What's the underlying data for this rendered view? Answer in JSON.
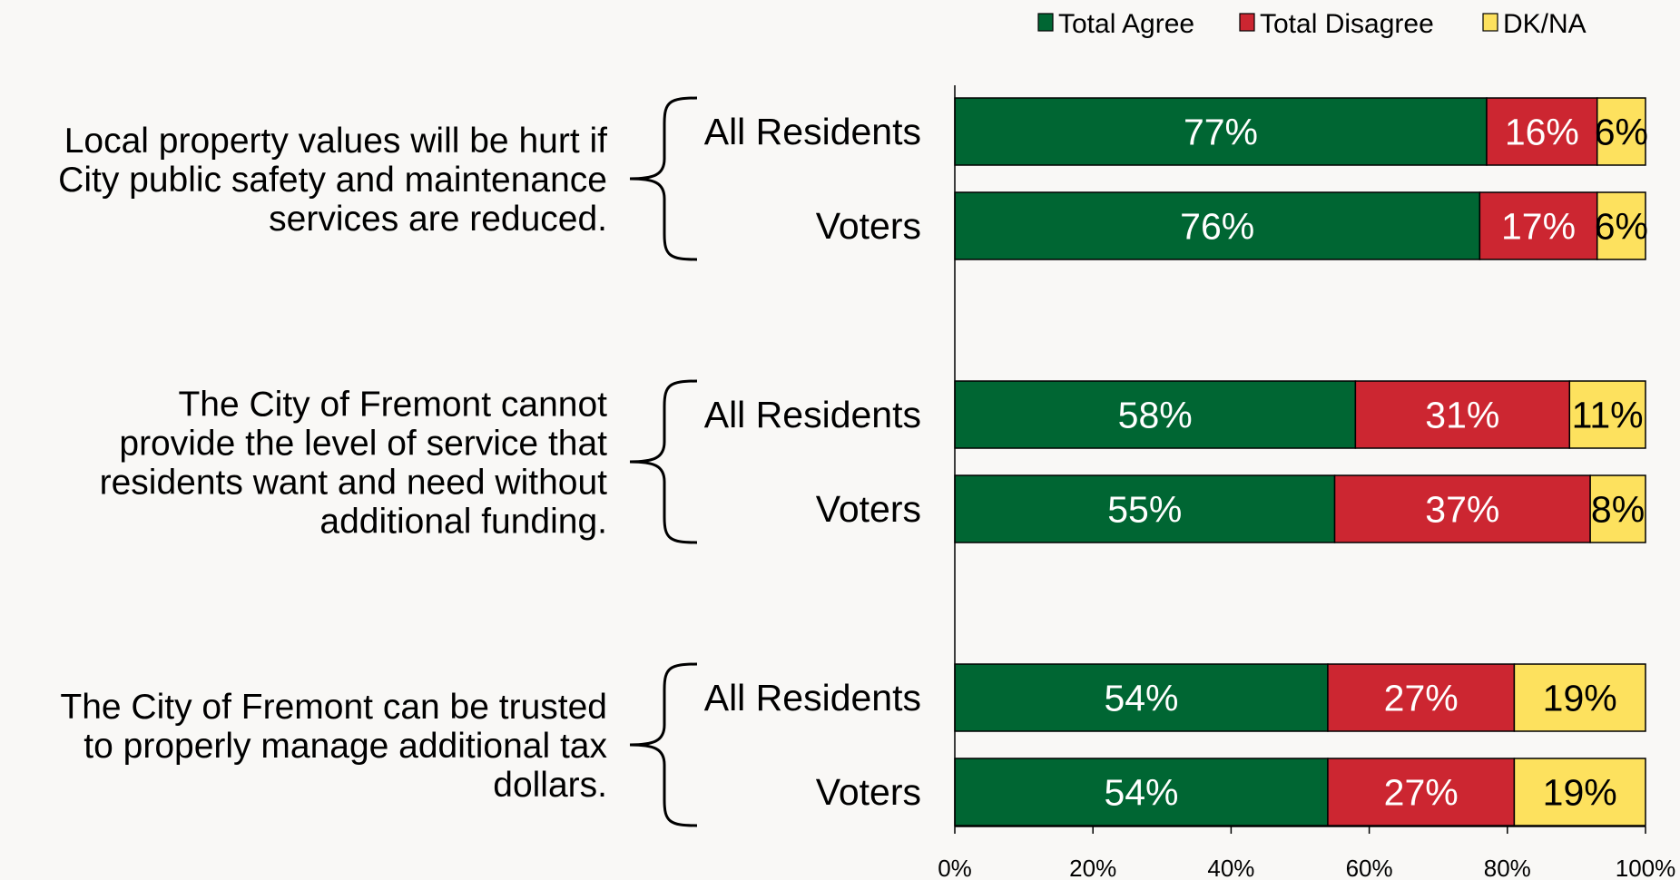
{
  "chart_data": {
    "type": "bar",
    "orientation": "horizontal",
    "stacked": true,
    "legend_position": "top-right",
    "legend": [
      {
        "label": "Total Agree",
        "color": "#006633"
      },
      {
        "label": "Total Disagree",
        "color": "#cc2631"
      },
      {
        "label": "DK/NA",
        "color": "#fde15e"
      }
    ],
    "x_ticks": [
      "0%",
      "20%",
      "40%",
      "60%",
      "80%",
      "100%"
    ],
    "xlim": [
      0,
      100
    ],
    "statements": [
      {
        "lines": [
          "Local property values will be hurt if",
          "City public safety and maintenance",
          "services are reduced."
        ],
        "rows": [
          {
            "group": "All Residents",
            "values": [
              77,
              16,
              6
            ],
            "labels": [
              "77%",
              "16%",
              "6%"
            ]
          },
          {
            "group": "Voters",
            "values": [
              76,
              17,
              6
            ],
            "labels": [
              "76%",
              "17%",
              "6%"
            ]
          }
        ]
      },
      {
        "lines": [
          "The City of Fremont cannot",
          "provide the level of service that",
          "residents want and need without",
          "additional funding."
        ],
        "rows": [
          {
            "group": "All Residents",
            "values": [
              58,
              31,
              11
            ],
            "labels": [
              "58%",
              "31%",
              "11%"
            ]
          },
          {
            "group": "Voters",
            "values": [
              55,
              37,
              8
            ],
            "labels": [
              "55%",
              "37%",
              "8%"
            ]
          }
        ]
      },
      {
        "lines": [
          "The City of Fremont can be trusted",
          "to properly manage additional tax",
          "dollars."
        ],
        "rows": [
          {
            "group": "All Residents",
            "values": [
              54,
              27,
              19
            ],
            "labels": [
              "54%",
              "27%",
              "19%"
            ]
          },
          {
            "group": "Voters",
            "values": [
              54,
              27,
              19
            ],
            "labels": [
              "54%",
              "27%",
              "19%"
            ]
          }
        ]
      }
    ]
  }
}
